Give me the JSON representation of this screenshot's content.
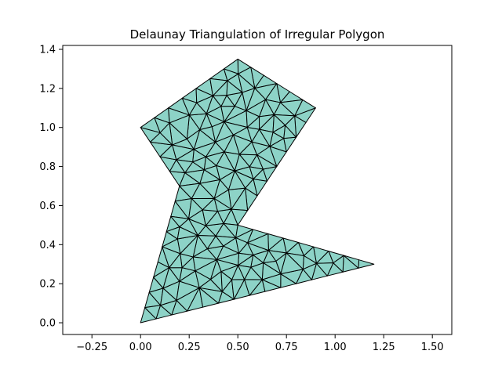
{
  "chart_data": {
    "type": "triangulation",
    "title": "Delaunay Triangulation of Irregular Polygon",
    "xlabel": "",
    "ylabel": "",
    "xlim": [
      -0.4,
      1.6
    ],
    "ylim": [
      -0.06,
      1.42
    ],
    "x_ticks": [
      -0.25,
      0.0,
      0.25,
      0.5,
      0.75,
      1.0,
      1.25,
      1.5
    ],
    "x_tick_labels": [
      "−0.25",
      "0.00",
      "0.25",
      "0.50",
      "0.75",
      "1.00",
      "1.25",
      "1.50"
    ],
    "y_ticks": [
      0.0,
      0.2,
      0.4,
      0.6,
      0.8,
      1.0,
      1.2,
      1.4
    ],
    "y_tick_labels": [
      "0.0",
      "0.2",
      "0.4",
      "0.6",
      "0.8",
      "1.0",
      "1.2",
      "1.4"
    ],
    "polygon": [
      [
        0.0,
        0.0
      ],
      [
        1.2,
        0.3
      ],
      [
        0.5,
        0.5
      ],
      [
        0.9,
        1.1
      ],
      [
        0.5,
        1.35
      ],
      [
        0.0,
        1.0
      ],
      [
        0.2,
        0.7
      ]
    ],
    "fill_color": "#8dd3c7",
    "edge_color": "#000000",
    "grid": false,
    "legend": "none"
  }
}
